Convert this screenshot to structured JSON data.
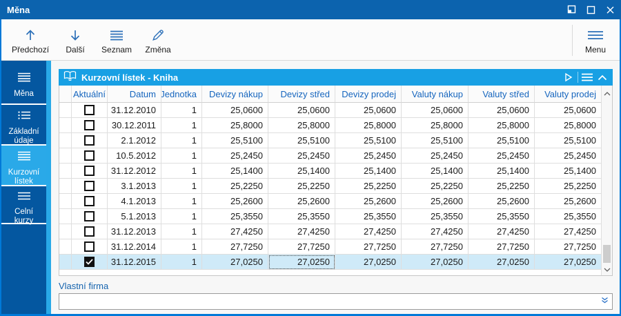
{
  "window": {
    "title": "Měna",
    "controls": [
      {
        "name": "restore",
        "icon": "restore-icon"
      },
      {
        "name": "maximize",
        "icon": "maximize-icon"
      },
      {
        "name": "close",
        "icon": "close-icon"
      }
    ]
  },
  "toolbar": {
    "buttons": [
      {
        "label": "Předchozí",
        "icon": "arrow-up-icon"
      },
      {
        "label": "Další",
        "icon": "arrow-down-icon"
      },
      {
        "label": "Seznam",
        "icon": "list-icon"
      },
      {
        "label": "Změna",
        "icon": "pencil-icon"
      }
    ],
    "menu": {
      "label": "Menu",
      "icon": "hamburger-icon"
    }
  },
  "sidebar": {
    "items": [
      {
        "label": "Měna",
        "icon": "hamburger-icon",
        "selected": false
      },
      {
        "label": "Základní údaje",
        "icon": "dotted-list-icon",
        "selected": false
      },
      {
        "label": "Kurzovní lístek",
        "icon": "hamburger-icon",
        "selected": true
      },
      {
        "label": "Celní kurzy",
        "icon": "hamburger-icon",
        "selected": false
      }
    ]
  },
  "panel": {
    "title": "Kurzovní lístek - Kniha",
    "icon": "open-book-icon",
    "header_icons": [
      "play-right-icon",
      "hamburger-icon",
      "chevron-up-icon"
    ]
  },
  "table": {
    "columns": [
      "Aktuální",
      "Datum",
      "Jednotka",
      "Devizy nákup",
      "Devizy střed",
      "Devizy prodej",
      "Valuty nákup",
      "Valuty střed",
      "Valuty prodej"
    ],
    "selected_row_index": 10,
    "focused_column": "Devizy nákup",
    "rows": [
      {
        "aktualni": false,
        "datum": "31.12.2010",
        "jednotka": "1",
        "values": [
          "25,0600",
          "25,0600",
          "25,0600",
          "25,0600",
          "25,0600",
          "25,0600"
        ]
      },
      {
        "aktualni": false,
        "datum": "30.12.2011",
        "jednotka": "1",
        "values": [
          "25,8000",
          "25,8000",
          "25,8000",
          "25,8000",
          "25,8000",
          "25,8000"
        ]
      },
      {
        "aktualni": false,
        "datum": "2.1.2012",
        "jednotka": "1",
        "values": [
          "25,5100",
          "25,5100",
          "25,5100",
          "25,5100",
          "25,5100",
          "25,5100"
        ]
      },
      {
        "aktualni": false,
        "datum": "10.5.2012",
        "jednotka": "1",
        "values": [
          "25,2450",
          "25,2450",
          "25,2450",
          "25,2450",
          "25,2450",
          "25,2450"
        ]
      },
      {
        "aktualni": false,
        "datum": "31.12.2012",
        "jednotka": "1",
        "values": [
          "25,1400",
          "25,1400",
          "25,1400",
          "25,1400",
          "25,1400",
          "25,1400"
        ]
      },
      {
        "aktualni": false,
        "datum": "3.1.2013",
        "jednotka": "1",
        "values": [
          "25,2250",
          "25,2250",
          "25,2250",
          "25,2250",
          "25,2250",
          "25,2250"
        ]
      },
      {
        "aktualni": false,
        "datum": "4.1.2013",
        "jednotka": "1",
        "values": [
          "25,2600",
          "25,2600",
          "25,2600",
          "25,2600",
          "25,2600",
          "25,2600"
        ]
      },
      {
        "aktualni": false,
        "datum": "5.1.2013",
        "jednotka": "1",
        "values": [
          "25,3550",
          "25,3550",
          "25,3550",
          "25,3550",
          "25,3550",
          "25,3550"
        ]
      },
      {
        "aktualni": false,
        "datum": "31.12.2013",
        "jednotka": "1",
        "values": [
          "27,4250",
          "27,4250",
          "27,4250",
          "27,4250",
          "27,4250",
          "27,4250"
        ]
      },
      {
        "aktualni": false,
        "datum": "31.12.2014",
        "jednotka": "1",
        "values": [
          "27,7250",
          "27,7250",
          "27,7250",
          "27,7250",
          "27,7250",
          "27,7250"
        ]
      },
      {
        "aktualni": true,
        "datum": "31.12.2015",
        "jednotka": "1",
        "values": [
          "27,0250",
          "27,0250",
          "27,0250",
          "27,0250",
          "27,0250",
          "27,0250"
        ]
      }
    ]
  },
  "footer": {
    "label": "Vlastní firma",
    "value": "",
    "icon": "double-chevron-down-icon"
  },
  "colors": {
    "titlebar": "#0c63ae",
    "sidebar": "#0457a0",
    "accent_cyan": "#29a9e8",
    "panel_header": "#18a0e4",
    "header_text": "#1565be",
    "selected_row": "#cfeaf8",
    "frame": "#0079d8",
    "icon_blue": "#2b6fb8"
  }
}
